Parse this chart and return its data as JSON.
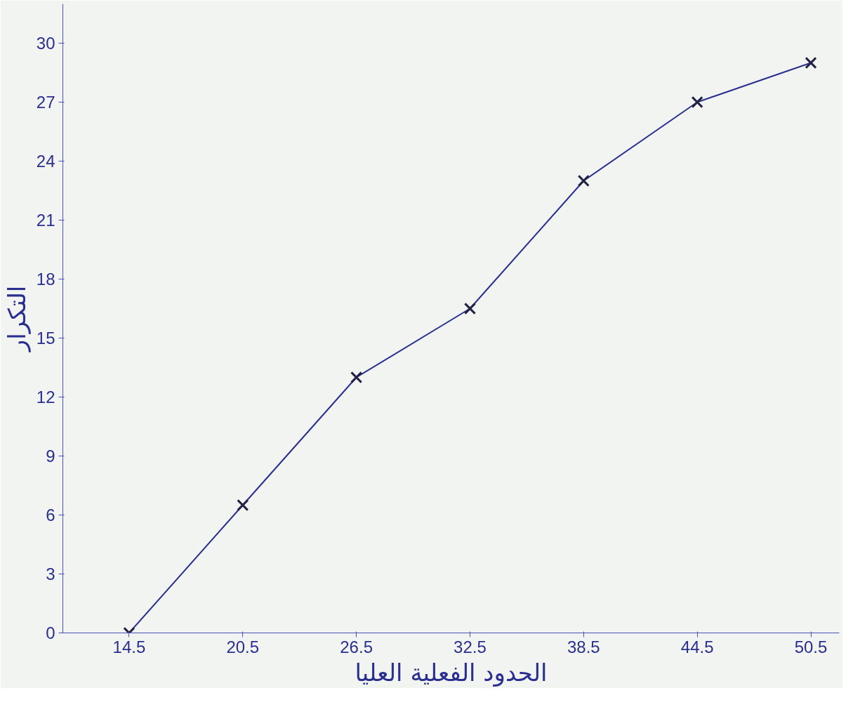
{
  "chart_data": {
    "type": "line",
    "xlabel": "الحدود الفعلية العليا",
    "ylabel": "التكرار",
    "x": [
      14.5,
      20.5,
      26.5,
      32.5,
      38.5,
      44.5,
      50.5
    ],
    "series": [
      {
        "color": "#2a2f8f",
        "values": [
          0,
          6.5,
          13,
          16.5,
          23,
          27,
          29
        ]
      }
    ],
    "xlim": [
      11,
      52
    ],
    "xticks": [
      14.5,
      20.5,
      26.5,
      32.5,
      38.5,
      44.5,
      50.5
    ],
    "ylim": [
      0,
      32
    ],
    "yticks": [
      0,
      3,
      6,
      9,
      12,
      15,
      18,
      21,
      24,
      27,
      30
    ],
    "grid": false,
    "marker": "cross",
    "line_style": "solid"
  }
}
